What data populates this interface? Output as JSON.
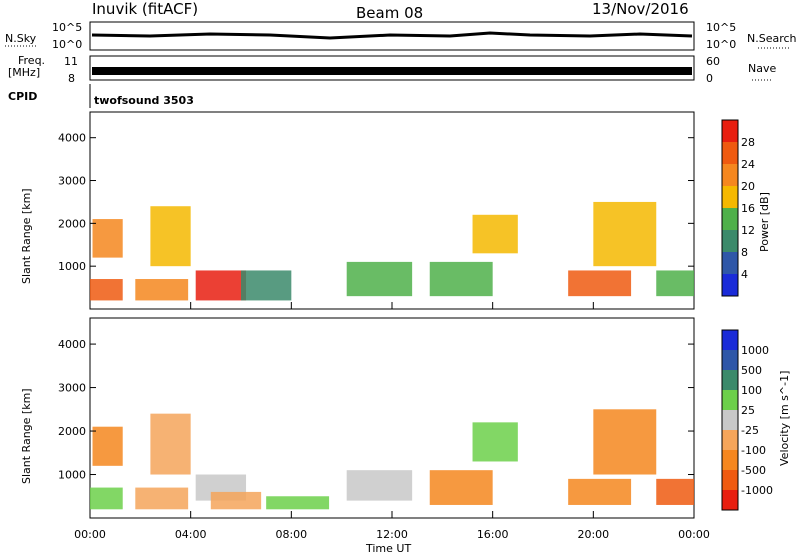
{
  "header": {
    "station": "Inuvik (fitACF)",
    "beam": "Beam 08",
    "date": "13/Nov/2016"
  },
  "nsky_panel": {
    "left_label": "N.Sky",
    "left_ticks": [
      "10^5",
      "10^0"
    ],
    "right_label": "N.Search",
    "right_ticks": [
      "10^5",
      "10^0"
    ]
  },
  "freq_panel": {
    "left_label": "Freq.",
    "unit": "[MHz]",
    "left_ticks": [
      "11",
      "8"
    ],
    "right_label": "Nave",
    "right_ticks": [
      "60",
      "0"
    ]
  },
  "cpid": {
    "label": "CPID",
    "value": "twofsound 3503"
  },
  "time_axis": {
    "label": "Time UT",
    "ticks": [
      "00:00",
      "04:00",
      "08:00",
      "12:00",
      "16:00",
      "20:00",
      "00:00"
    ]
  },
  "colors": {
    "power": [
      "#1a2bd8",
      "#2f57a8",
      "#3b8a6b",
      "#4fb04a",
      "#f5b800",
      "#f5871f",
      "#ef5a10",
      "#e81f10"
    ],
    "velocity": [
      "#e81f10",
      "#ef5a10",
      "#f5871f",
      "#f5a55a",
      "#c8c8c8",
      "#6cd04a",
      "#3b8a6b",
      "#2f57a8",
      "#1a2bd8"
    ]
  },
  "chart_data": [
    {
      "type": "heatmap",
      "title": "",
      "xlabel": "",
      "ylabel": "Slant Range [km]",
      "x_range": [
        "00:00",
        "00:00"
      ],
      "y_ticks": [
        1000,
        2000,
        3000,
        4000
      ],
      "colorbar": {
        "label": "Power [dB]",
        "ticks": [
          "28",
          "24",
          "20",
          "16",
          "12",
          "8",
          "4"
        ]
      },
      "echo_regions": [
        {
          "t0": 0.0,
          "t1": 1.3,
          "r0": 200,
          "r1": 700,
          "level": 6
        },
        {
          "t0": 0.1,
          "t1": 1.3,
          "r0": 1200,
          "r1": 2100,
          "level": 5
        },
        {
          "t0": 1.8,
          "t1": 3.9,
          "r0": 200,
          "r1": 700,
          "level": 5
        },
        {
          "t0": 2.4,
          "t1": 4.0,
          "r0": 1000,
          "r1": 2400,
          "level": 4
        },
        {
          "t0": 4.2,
          "t1": 6.2,
          "r0": 200,
          "r1": 900,
          "level": 7
        },
        {
          "t0": 6.0,
          "t1": 8.0,
          "r0": 200,
          "r1": 900,
          "level": 2
        },
        {
          "t0": 10.2,
          "t1": 12.8,
          "r0": 300,
          "r1": 1100,
          "level": 3
        },
        {
          "t0": 13.5,
          "t1": 16.0,
          "r0": 300,
          "r1": 1100,
          "level": 3
        },
        {
          "t0": 15.2,
          "t1": 17.0,
          "r0": 1300,
          "r1": 2200,
          "level": 4
        },
        {
          "t0": 19.0,
          "t1": 21.5,
          "r0": 300,
          "r1": 900,
          "level": 6
        },
        {
          "t0": 20.0,
          "t1": 22.5,
          "r0": 1000,
          "r1": 2500,
          "level": 4
        },
        {
          "t0": 22.5,
          "t1": 24.0,
          "r0": 300,
          "r1": 900,
          "level": 3
        }
      ]
    },
    {
      "type": "heatmap",
      "title": "",
      "xlabel": "Time UT",
      "ylabel": "Slant Range [km]",
      "x_range": [
        "00:00",
        "00:00"
      ],
      "y_ticks": [
        1000,
        2000,
        3000,
        4000
      ],
      "colorbar": {
        "label": "Velocity [m s^-1]",
        "ticks": [
          "1000",
          "500",
          "100",
          "25",
          "-25",
          "-100",
          "-500",
          "-1000"
        ]
      },
      "echo_regions": [
        {
          "t0": 0.0,
          "t1": 1.3,
          "r0": 200,
          "r1": 700,
          "level": 5
        },
        {
          "t0": 0.1,
          "t1": 1.3,
          "r0": 1200,
          "r1": 2100,
          "level": 2
        },
        {
          "t0": 1.8,
          "t1": 3.9,
          "r0": 200,
          "r1": 700,
          "level": 3
        },
        {
          "t0": 2.4,
          "t1": 4.0,
          "r0": 1000,
          "r1": 2400,
          "level": 3
        },
        {
          "t0": 4.2,
          "t1": 6.2,
          "r0": 400,
          "r1": 1000,
          "level": 4
        },
        {
          "t0": 4.8,
          "t1": 6.8,
          "r0": 200,
          "r1": 600,
          "level": 3
        },
        {
          "t0": 7.0,
          "t1": 9.5,
          "r0": 200,
          "r1": 500,
          "level": 5
        },
        {
          "t0": 10.2,
          "t1": 12.8,
          "r0": 400,
          "r1": 1100,
          "level": 4
        },
        {
          "t0": 13.5,
          "t1": 16.0,
          "r0": 300,
          "r1": 1100,
          "level": 2
        },
        {
          "t0": 15.2,
          "t1": 17.0,
          "r0": 1300,
          "r1": 2200,
          "level": 5
        },
        {
          "t0": 19.0,
          "t1": 21.5,
          "r0": 300,
          "r1": 900,
          "level": 2
        },
        {
          "t0": 20.0,
          "t1": 22.5,
          "r0": 1000,
          "r1": 2500,
          "level": 2
        },
        {
          "t0": 22.5,
          "t1": 24.0,
          "r0": 300,
          "r1": 900,
          "level": 1
        }
      ]
    }
  ]
}
